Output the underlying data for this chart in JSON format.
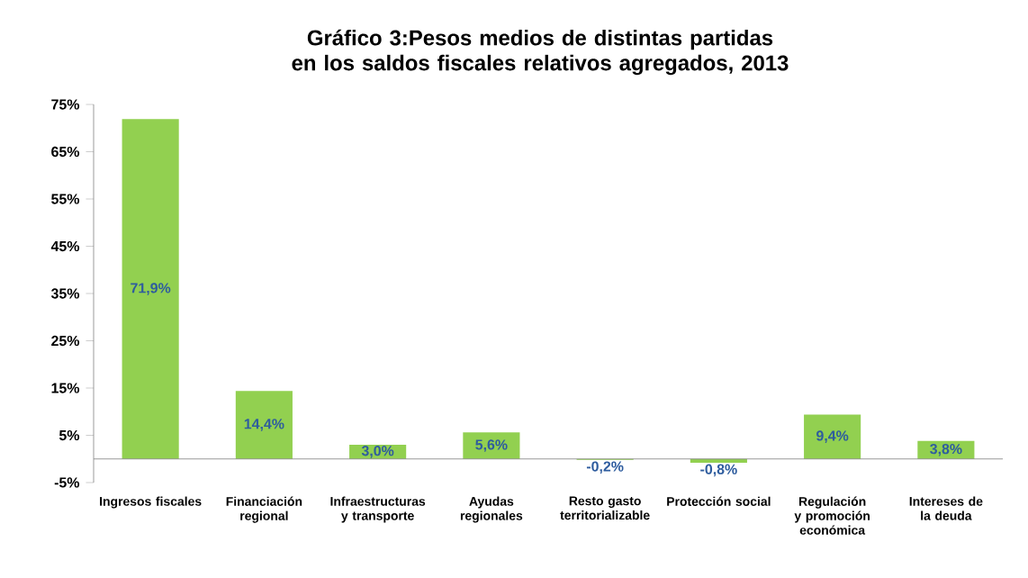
{
  "chart_data": {
    "type": "bar",
    "title": "Gráfico 3:Pesos medios de distintas partidas en los saldos fiscales relativos agregados, 2013",
    "categories": [
      "Ingresos fiscales",
      "Financiación regional",
      "Infraestructuras y transporte",
      "Ayudas regionales",
      "Resto gasto territorializable",
      "Protección social",
      "Regulación y promoción económica",
      "Intereses de la deuda"
    ],
    "values": [
      71.9,
      14.4,
      3.0,
      5.6,
      -0.2,
      -0.8,
      9.4,
      3.8
    ],
    "value_labels": [
      "71,9%",
      "14,4%",
      "3,0%",
      "5,6%",
      "-0,2%",
      "-0,8%",
      "9,4%",
      "3,8%"
    ],
    "color": "#92d050",
    "ylim": [
      -5,
      75
    ],
    "yticks": [
      {
        "value": -5,
        "label": "-5%"
      },
      {
        "value": 5,
        "label": "5%"
      },
      {
        "value": 15,
        "label": "15%"
      },
      {
        "value": 25,
        "label": "25%"
      },
      {
        "value": 35,
        "label": "35%"
      },
      {
        "value": 45,
        "label": "45%"
      },
      {
        "value": 55,
        "label": "55%"
      },
      {
        "value": 65,
        "label": "65%"
      },
      {
        "value": 75,
        "label": "75%"
      }
    ],
    "grid": false
  }
}
